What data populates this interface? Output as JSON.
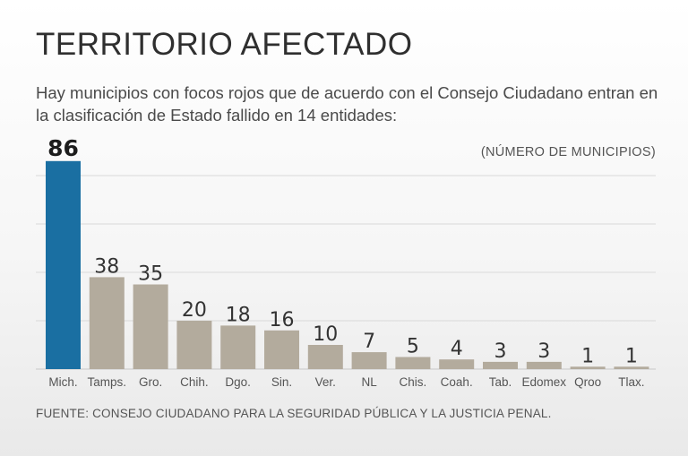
{
  "title": "TERRITORIO AFECTADO",
  "subtitle": "Hay municipios con focos rojos que de acuerdo con el Consejo Ciudadano entran en la clasificación de Estado fallido en 14 entidades:",
  "units_label": "(NÚMERO DE MUNICIPIOS)",
  "source": "FUENTE: CONSEJO CIUDADANO PARA LA SEGURIDAD PÚBLICA Y LA JUSTICIA PENAL.",
  "colors": {
    "highlight": "#1a6fa2",
    "bar": "#b3ab9d",
    "grid": "#d9d9d9"
  },
  "chart_data": {
    "type": "bar",
    "title": "TERRITORIO AFECTADO",
    "xlabel": "",
    "ylabel": "(NÚMERO DE MUNICIPIOS)",
    "ylim": [
      0,
      90
    ],
    "categories": [
      "Mich.",
      "Tamps.",
      "Gro.",
      "Chih.",
      "Dgo.",
      "Sin.",
      "Ver.",
      "NL",
      "Chis.",
      "Coah.",
      "Tab.",
      "Edomex",
      "Qroo",
      "Tlax."
    ],
    "values": [
      86,
      38,
      35,
      20,
      18,
      16,
      10,
      7,
      5,
      4,
      3,
      3,
      1,
      1
    ],
    "highlight_index": 0,
    "grid": true
  }
}
